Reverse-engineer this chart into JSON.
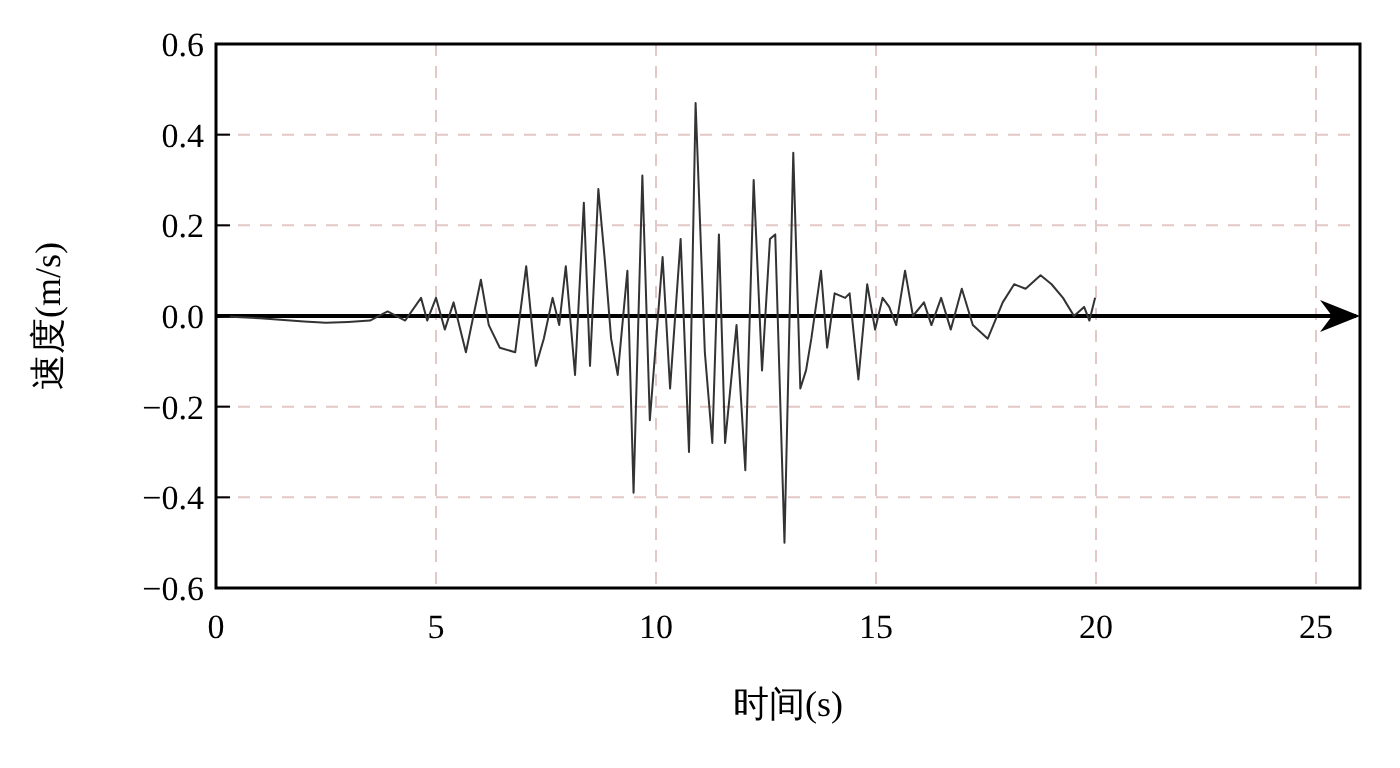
{
  "chart_data": {
    "type": "line",
    "xlabel": "时间(s)",
    "ylabel": "速度(m/s)",
    "xlim": [
      0,
      26
    ],
    "ylim": [
      -0.6,
      0.6
    ],
    "xticks": [
      0,
      5,
      10,
      15,
      20,
      25
    ],
    "yticks": [
      {
        "value": -0.6,
        "label": "−0.6"
      },
      {
        "value": -0.4,
        "label": "−0.4"
      },
      {
        "value": -0.2,
        "label": "−0.2"
      },
      {
        "value": 0,
        "label": "0.0"
      },
      {
        "value": 0.2,
        "label": "0.2"
      },
      {
        "value": 0.4,
        "label": "0.4"
      },
      {
        "value": 0.6,
        "label": "0.6"
      }
    ],
    "grid": true,
    "marker": "none",
    "line_style": "solid",
    "ref_lines": [
      {
        "axis": "y",
        "value": 0,
        "color": "#000000"
      }
    ],
    "series": [
      {
        "color": "#333333",
        "x": [
          0,
          1,
          2,
          2.5,
          3,
          3.5,
          3.9,
          4.3,
          4.66,
          4.8,
          5,
          5.2,
          5.4,
          5.68,
          6.02,
          6.2,
          6.45,
          6.8,
          7.05,
          7.27,
          7.45,
          7.65,
          7.8,
          7.95,
          8.16,
          8.36,
          8.5,
          8.69,
          8.84,
          8.98,
          9.13,
          9.35,
          9.49,
          9.69,
          9.86,
          10.15,
          10.32,
          10.56,
          10.75,
          10.9,
          11.11,
          11.28,
          11.43,
          11.57,
          11.83,
          12.03,
          12.22,
          12.41,
          12.59,
          12.71,
          12.92,
          13.12,
          13.28,
          13.41,
          13.53,
          13.75,
          13.89,
          14.06,
          14.3,
          14.4,
          14.6,
          14.8,
          14.98,
          15.15,
          15.3,
          15.46,
          15.66,
          15.84,
          16.09,
          16.26,
          16.48,
          16.7,
          16.95,
          17.2,
          17.54,
          17.88,
          18.14,
          18.4,
          18.74,
          18.99,
          19.25,
          19.5,
          19.73,
          19.85,
          19.98
        ],
        "values": [
          0,
          -0.005,
          -0.012,
          -0.015,
          -0.013,
          -0.01,
          0.01,
          -0.01,
          0.04,
          -0.01,
          0.04,
          -0.03,
          0.03,
          -0.08,
          0.08,
          -0.02,
          -0.07,
          -0.08,
          0.11,
          -0.11,
          -0.05,
          0.04,
          -0.02,
          0.11,
          -0.13,
          0.25,
          -0.11,
          0.28,
          0.12,
          -0.05,
          -0.13,
          0.1,
          -0.39,
          0.31,
          -0.23,
          0.13,
          -0.16,
          0.17,
          -0.3,
          0.47,
          -0.08,
          -0.28,
          0.18,
          -0.28,
          -0.02,
          -0.34,
          0.3,
          -0.12,
          0.17,
          0.18,
          -0.5,
          0.36,
          -0.16,
          -0.12,
          -0.05,
          0.1,
          -0.07,
          0.05,
          0.04,
          0.05,
          -0.14,
          0.07,
          -0.03,
          0.04,
          0.02,
          -0.02,
          0.1,
          0,
          0.03,
          -0.02,
          0.04,
          -0.03,
          0.06,
          -0.02,
          -0.05,
          0.03,
          0.07,
          0.06,
          0.09,
          0.07,
          0.04,
          0,
          0.02,
          -0.01,
          0.04
        ]
      }
    ]
  }
}
